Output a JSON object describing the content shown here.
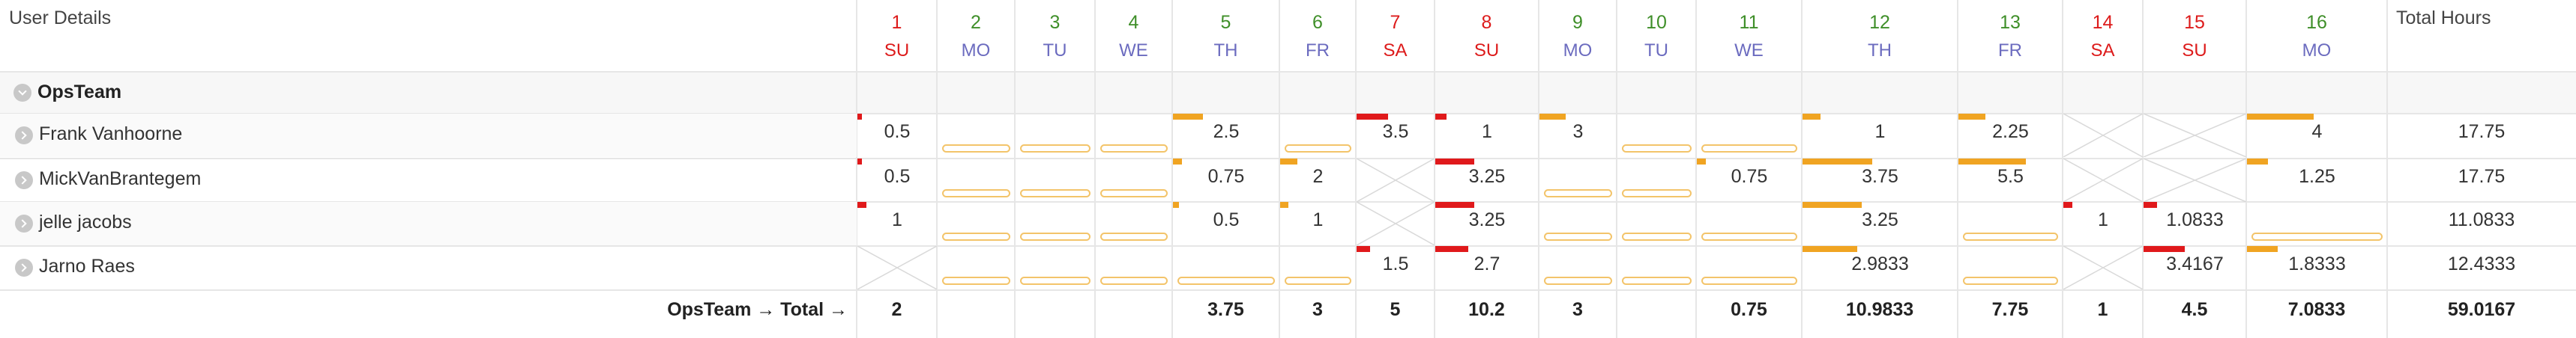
{
  "header": {
    "title": "User Details",
    "total_label": "Total Hours"
  },
  "colors": {
    "weekday_number": "#3f8f29",
    "weekend_number": "#dd1b1b",
    "weekday_name": "#6b6bbf",
    "weekend_name": "#dd1b1b",
    "bar_weekday": "#f0a422",
    "bar_weekend": "#e0191b",
    "bar_outline": "#f3c46a"
  },
  "days": [
    {
      "num": "1",
      "name": "SU",
      "weekend": true
    },
    {
      "num": "2",
      "name": "MO",
      "weekend": false
    },
    {
      "num": "3",
      "name": "TU",
      "weekend": false
    },
    {
      "num": "4",
      "name": "WE",
      "weekend": false
    },
    {
      "num": "5",
      "name": "TH",
      "weekend": false
    },
    {
      "num": "6",
      "name": "FR",
      "weekend": false
    },
    {
      "num": "7",
      "name": "SA",
      "weekend": true
    },
    {
      "num": "8",
      "name": "SU",
      "weekend": true
    },
    {
      "num": "9",
      "name": "MO",
      "weekend": false
    },
    {
      "num": "10",
      "name": "TU",
      "weekend": false
    },
    {
      "num": "11",
      "name": "WE",
      "weekend": false
    },
    {
      "num": "12",
      "name": "TH",
      "weekend": false
    },
    {
      "num": "13",
      "name": "FR",
      "weekend": false
    },
    {
      "num": "14",
      "name": "SA",
      "weekend": true
    },
    {
      "num": "15",
      "name": "SU",
      "weekend": true
    },
    {
      "num": "16",
      "name": "MO",
      "weekend": false
    }
  ],
  "group": {
    "name": "OpsTeam",
    "users": [
      {
        "name": "Frank Vanhoorne",
        "total": "17.75",
        "cells": [
          {
            "value": "0.5",
            "fill": 0.06
          },
          {
            "value": "",
            "fill": 0
          },
          {
            "value": "",
            "fill": 0
          },
          {
            "value": "",
            "fill": 0
          },
          {
            "value": "2.5",
            "fill": 0.3
          },
          {
            "value": "",
            "fill": 0
          },
          {
            "value": "3.5",
            "fill": 0.44
          },
          {
            "value": "1",
            "fill": 0.12
          },
          {
            "value": "3",
            "fill": 0.37
          },
          {
            "value": "",
            "fill": 0
          },
          {
            "value": "",
            "fill": 0
          },
          {
            "value": "1",
            "fill": 0.12
          },
          {
            "value": "2.25",
            "fill": 0.28
          },
          {
            "value": null,
            "fill": 0
          },
          {
            "value": null,
            "fill": 0
          },
          {
            "value": "4",
            "fill": 0.5
          }
        ]
      },
      {
        "name": "MickVanBrantegem",
        "total": "17.75",
        "cells": [
          {
            "value": "0.5",
            "fill": 0.06
          },
          {
            "value": "",
            "fill": 0
          },
          {
            "value": "",
            "fill": 0
          },
          {
            "value": "",
            "fill": 0
          },
          {
            "value": "0.75",
            "fill": 0.09
          },
          {
            "value": "2",
            "fill": 0.25
          },
          {
            "value": null,
            "fill": 0
          },
          {
            "value": "3.25",
            "fill": 0.4
          },
          {
            "value": "",
            "fill": 0
          },
          {
            "value": "",
            "fill": 0
          },
          {
            "value": "0.75",
            "fill": 0.09
          },
          {
            "value": "3.75",
            "fill": 0.47
          },
          {
            "value": "5.5",
            "fill": 0.69
          },
          {
            "value": null,
            "fill": 0
          },
          {
            "value": null,
            "fill": 0
          },
          {
            "value": "1.25",
            "fill": 0.16
          }
        ]
      },
      {
        "name": "jelle jacobs",
        "total": "11.0833",
        "cells": [
          {
            "value": "1",
            "fill": 0.12
          },
          {
            "value": "",
            "fill": 0
          },
          {
            "value": "",
            "fill": 0
          },
          {
            "value": "",
            "fill": 0
          },
          {
            "value": "0.5",
            "fill": 0.06
          },
          {
            "value": "1",
            "fill": 0.12
          },
          {
            "value": null,
            "fill": 0
          },
          {
            "value": "3.25",
            "fill": 0.4
          },
          {
            "value": "",
            "fill": 0
          },
          {
            "value": "",
            "fill": 0
          },
          {
            "value": "",
            "fill": 0
          },
          {
            "value": "3.25",
            "fill": 0.4
          },
          {
            "value": "",
            "fill": 0
          },
          {
            "value": "1",
            "fill": 0.12
          },
          {
            "value": "1.0833",
            "fill": 0.14
          },
          {
            "value": "",
            "fill": 0
          }
        ]
      },
      {
        "name": "Jarno Raes",
        "total": "12.4333",
        "cells": [
          {
            "value": null,
            "fill": 0
          },
          {
            "value": "",
            "fill": 0
          },
          {
            "value": "",
            "fill": 0
          },
          {
            "value": "",
            "fill": 0
          },
          {
            "value": "",
            "fill": 0
          },
          {
            "value": "",
            "fill": 0
          },
          {
            "value": "1.5",
            "fill": 0.19
          },
          {
            "value": "2.7",
            "fill": 0.34
          },
          {
            "value": "",
            "fill": 0
          },
          {
            "value": "",
            "fill": 0
          },
          {
            "value": "",
            "fill": 0
          },
          {
            "value": "2.9833",
            "fill": 0.37
          },
          {
            "value": "",
            "fill": 0
          },
          {
            "value": null,
            "fill": 0
          },
          {
            "value": "3.4167",
            "fill": 0.43
          },
          {
            "value": "1.8333",
            "fill": 0.23
          }
        ]
      }
    ],
    "footer_label": "OpsTeam → Total →",
    "footer_values": [
      "2",
      "",
      "",
      "",
      "3.75",
      "3",
      "5",
      "10.2",
      "3",
      "",
      "0.75",
      "10.9833",
      "7.75",
      "1",
      "4.5",
      "7.0833"
    ],
    "footer_total": "59.0167"
  }
}
